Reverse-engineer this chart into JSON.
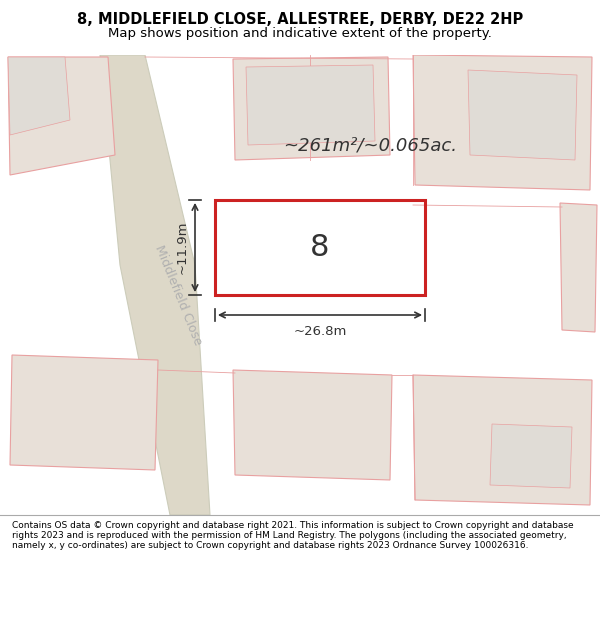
{
  "title_line1": "8, MIDDLEFIELD CLOSE, ALLESTREE, DERBY, DE22 2HP",
  "title_line2": "Map shows position and indicative extent of the property.",
  "area_text": "~261m²/~0.065ac.",
  "property_number": "8",
  "width_label": "~26.8m",
  "height_label": "~11.9m",
  "road_label": "Middlefield Close",
  "footer_text": "Contains OS data © Crown copyright and database right 2021. This information is subject to Crown copyright and database rights 2023 and is reproduced with the permission of HM Land Registry. The polygons (including the associated geometry, namely x, y co-ordinates) are subject to Crown copyright and database rights 2023 Ordnance Survey 100026316.",
  "map_bg": "#f0ede8",
  "property_outline_color": "#cc2222",
  "other_outline_color": "#e8a0a0",
  "other_fill_color": "#e8e0d8",
  "footer_bg": "#ffffff",
  "title_bg": "#ffffff"
}
